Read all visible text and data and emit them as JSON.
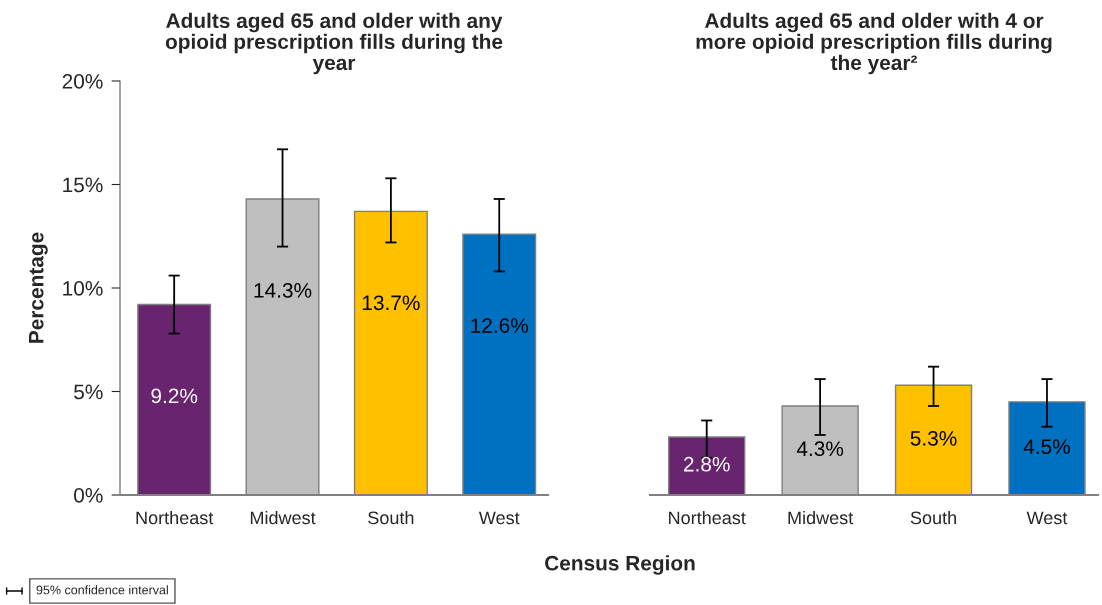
{
  "chart_data": [
    {
      "type": "bar",
      "title": "Adults aged 65 and older with any\nopioid prescription fills during the\nyear",
      "xlabel": "Census Region",
      "ylabel": "Percentage",
      "categories": [
        "Northeast",
        "Midwest",
        "South",
        "West"
      ],
      "values": [
        9.2,
        14.3,
        13.7,
        12.6
      ],
      "colors": [
        "#68246f",
        "#bfbfbf",
        "#ffc000",
        "#0070c0"
      ],
      "errors": [
        [
          7.8,
          10.6
        ],
        [
          12.0,
          16.7
        ],
        [
          12.2,
          15.3
        ],
        [
          10.8,
          14.3
        ]
      ],
      "value_labels": [
        "9.2%",
        "14.3%",
        "13.7%",
        "12.6%"
      ],
      "ylim": [
        0,
        20
      ],
      "yticks": [
        {
          "value": 0,
          "label": "0%"
        },
        {
          "value": 5,
          "label": "5%"
        },
        {
          "value": 10,
          "label": "10%"
        },
        {
          "value": 15,
          "label": "15%"
        },
        {
          "value": 20,
          "label": "20%"
        }
      ],
      "annotations": [
        "95% confidence interval"
      ],
      "grid": false,
      "legend": false
    },
    {
      "type": "bar",
      "title": "Adults aged 65 and older with 4 or\nmore opioid prescription fills during\nthe year²",
      "categories": [
        "Northeast",
        "Midwest",
        "South",
        "West"
      ],
      "values": [
        2.8,
        4.3,
        5.3,
        4.5
      ],
      "colors": [
        "#68246f",
        "#bfbfbf",
        "#ffc000",
        "#0070c0"
      ],
      "errors": [
        [
          1.8,
          3.6
        ],
        [
          2.9,
          5.6
        ],
        [
          4.3,
          6.2
        ],
        [
          3.3,
          5.6
        ]
      ],
      "value_labels": [
        "2.8%",
        "4.3%",
        "5.3%",
        "4.5%"
      ],
      "ylim": [
        0,
        20
      ],
      "tick_labels": "x",
      "grid": false,
      "legend": false
    }
  ]
}
